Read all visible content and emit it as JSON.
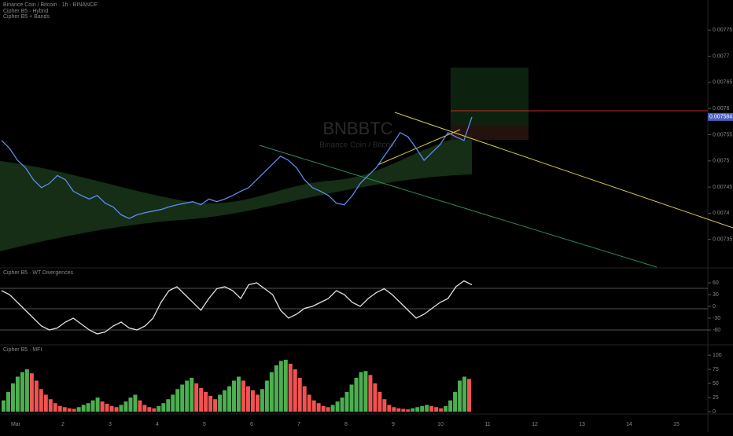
{
  "header": {
    "symbol_line": "Binance Coin / Bitcoin · 1h · BINANCE",
    "indicators": [
      "Cipher B5 · Hybrid",
      "Cipher B5 + Bands"
    ]
  },
  "watermark": {
    "symbol": "BNBBTC",
    "description": "Binance Coin / Bitcoin"
  },
  "price_panel": {
    "closes": [
      0.007539,
      0.007524,
      0.007501,
      0.007487,
      0.007464,
      0.007449,
      0.007457,
      0.007472,
      0.007464,
      0.007442,
      0.007434,
      0.007427,
      0.007434,
      0.007419,
      0.007412,
      0.007397,
      0.00739,
      0.007397,
      0.007401,
      0.007404,
      0.007407,
      0.007412,
      0.007416,
      0.007419,
      0.007422,
      0.007416,
      0.007427,
      0.007422,
      0.007427,
      0.007434,
      0.007442,
      0.007449,
      0.007464,
      0.007479,
      0.007494,
      0.007509,
      0.007501,
      0.007487,
      0.007464,
      0.007449,
      0.007442,
      0.007434,
      0.007419,
      0.007416,
      0.007434,
      0.007457,
      0.007472,
      0.007487,
      0.007509,
      0.007531,
      0.007554,
      0.007546,
      0.007524,
      0.007501,
      0.007516,
      0.007531,
      0.007554,
      0.007546,
      0.007539,
      0.007584
    ],
    "ylim": [
      0.0073,
      0.0078
    ],
    "yticks": [
      0.00735,
      0.0074,
      0.00745,
      0.0075,
      0.00755,
      0.0076,
      0.00765,
      0.0077,
      0.00775
    ],
    "last_price": 0.007584
  },
  "oscillator_panel": {
    "title": "Cipher B5 · WT Divergences",
    "values": [
      40,
      30,
      10,
      -10,
      -30,
      -50,
      -60,
      -55,
      -40,
      -30,
      -45,
      -60,
      -70,
      -65,
      -50,
      -40,
      -55,
      -60,
      -50,
      -30,
      10,
      40,
      50,
      30,
      10,
      -10,
      20,
      45,
      50,
      40,
      20,
      55,
      60,
      45,
      30,
      -10,
      -30,
      -20,
      -5,
      0,
      10,
      20,
      40,
      30,
      10,
      0,
      20,
      35,
      45,
      30,
      10,
      -10,
      -30,
      -20,
      -5,
      10,
      20,
      50,
      65,
      55
    ],
    "ylim": [
      -90,
      90
    ],
    "yticks": [
      -60,
      -30,
      0,
      30,
      60
    ]
  },
  "histogram_panel": {
    "title": "Cipher B5 · MFI",
    "values": [
      20,
      35,
      50,
      62,
      70,
      75,
      68,
      55,
      40,
      30,
      22,
      15,
      10,
      8,
      6,
      5,
      8,
      12,
      15,
      20,
      25,
      18,
      14,
      10,
      8,
      12,
      18,
      25,
      30,
      20,
      12,
      8,
      6,
      10,
      15,
      22,
      30,
      40,
      48,
      55,
      60,
      50,
      42,
      35,
      28,
      22,
      30,
      38,
      45,
      55,
      62,
      55,
      45,
      38,
      30,
      40,
      55,
      70,
      82,
      90,
      92,
      85,
      75,
      60,
      45,
      30,
      20,
      15,
      10,
      8,
      12,
      18,
      25,
      35,
      48,
      60,
      70,
      72,
      65,
      50,
      35,
      22,
      12,
      8,
      6,
      5,
      4,
      6,
      8,
      10,
      12,
      10,
      8,
      6,
      10,
      20,
      35,
      55,
      62,
      58
    ],
    "ylim": [
      0,
      110
    ],
    "yticks": [
      0,
      25,
      50,
      75,
      100
    ],
    "up_color": "#4caf50",
    "down_color": "#f05350"
  },
  "time_axis": {
    "labels": [
      "Mar",
      "2",
      "3",
      "4",
      "5",
      "6",
      "7",
      "8",
      "9",
      "10",
      "11",
      "12",
      "13",
      "14",
      "15"
    ]
  }
}
